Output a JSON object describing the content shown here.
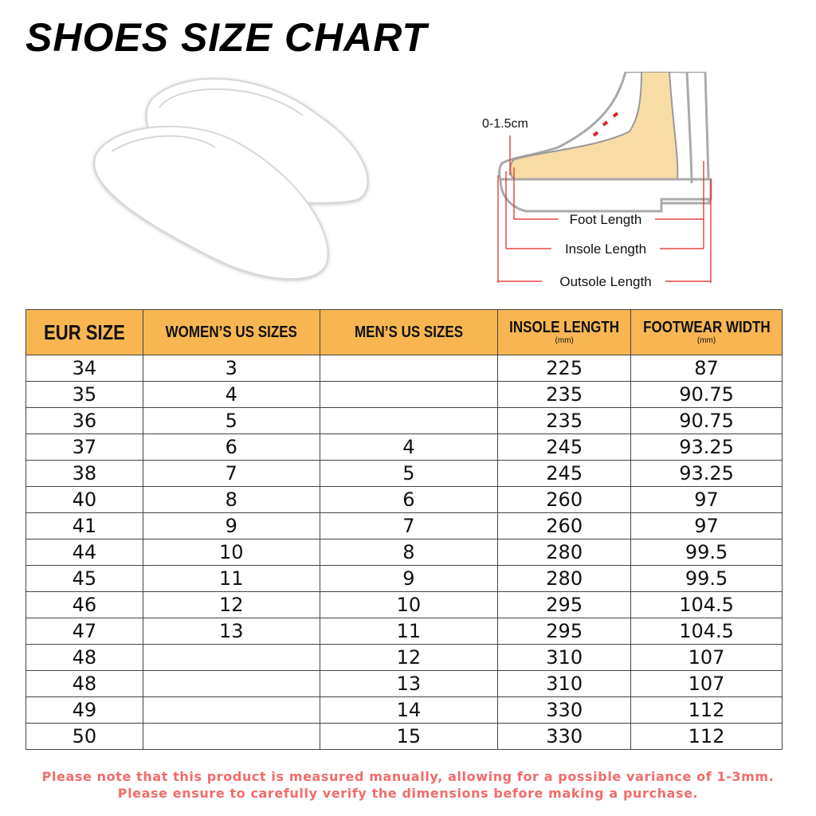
{
  "title": "SHOES SIZE CHART",
  "diagram": {
    "gap_label": "0-1.5cm",
    "foot_length": "Foot Length",
    "insole_length": "Insole Length",
    "outsole_length": "Outsole Length",
    "arrow_color": "#e02020",
    "foot_color": "#f8dca6"
  },
  "table": {
    "header_color": "#f7b652",
    "headers": [
      {
        "label": "EUR SIZE",
        "unit": ""
      },
      {
        "label": "WOMEN’S US SIZES",
        "unit": ""
      },
      {
        "label": "MEN’S US SIZES",
        "unit": ""
      },
      {
        "label": "INSOLE  LENGTH",
        "unit": "(mm)"
      },
      {
        "label": "FOOTWEAR WIDTH",
        "unit": "(mm)"
      }
    ],
    "rows": [
      [
        "34",
        "3",
        "",
        "225",
        "87"
      ],
      [
        "35",
        "4",
        "",
        "235",
        "90.75"
      ],
      [
        "36",
        "5",
        "",
        "235",
        "90.75"
      ],
      [
        "37",
        "6",
        "4",
        "245",
        "93.25"
      ],
      [
        "38",
        "7",
        "5",
        "245",
        "93.25"
      ],
      [
        "40",
        "8",
        "6",
        "260",
        "97"
      ],
      [
        "41",
        "9",
        "7",
        "260",
        "97"
      ],
      [
        "44",
        "10",
        "8",
        "280",
        "99.5"
      ],
      [
        "45",
        "11",
        "9",
        "280",
        "99.5"
      ],
      [
        "46",
        "12",
        "10",
        "295",
        "104.5"
      ],
      [
        "47",
        "13",
        "11",
        "295",
        "104.5"
      ],
      [
        "48",
        "",
        "12",
        "310",
        "107"
      ],
      [
        "48",
        "",
        "13",
        "310",
        "107"
      ],
      [
        "49",
        "",
        "14",
        "330",
        "112"
      ],
      [
        "50",
        "",
        "15",
        "330",
        "112"
      ]
    ]
  },
  "notes": [
    "Please note that this product is measured manually, allowing for a possible variance of 1-3mm.",
    "Please ensure to carefully verify the dimensions before making a purchase."
  ],
  "note_color": "#f26b6b"
}
